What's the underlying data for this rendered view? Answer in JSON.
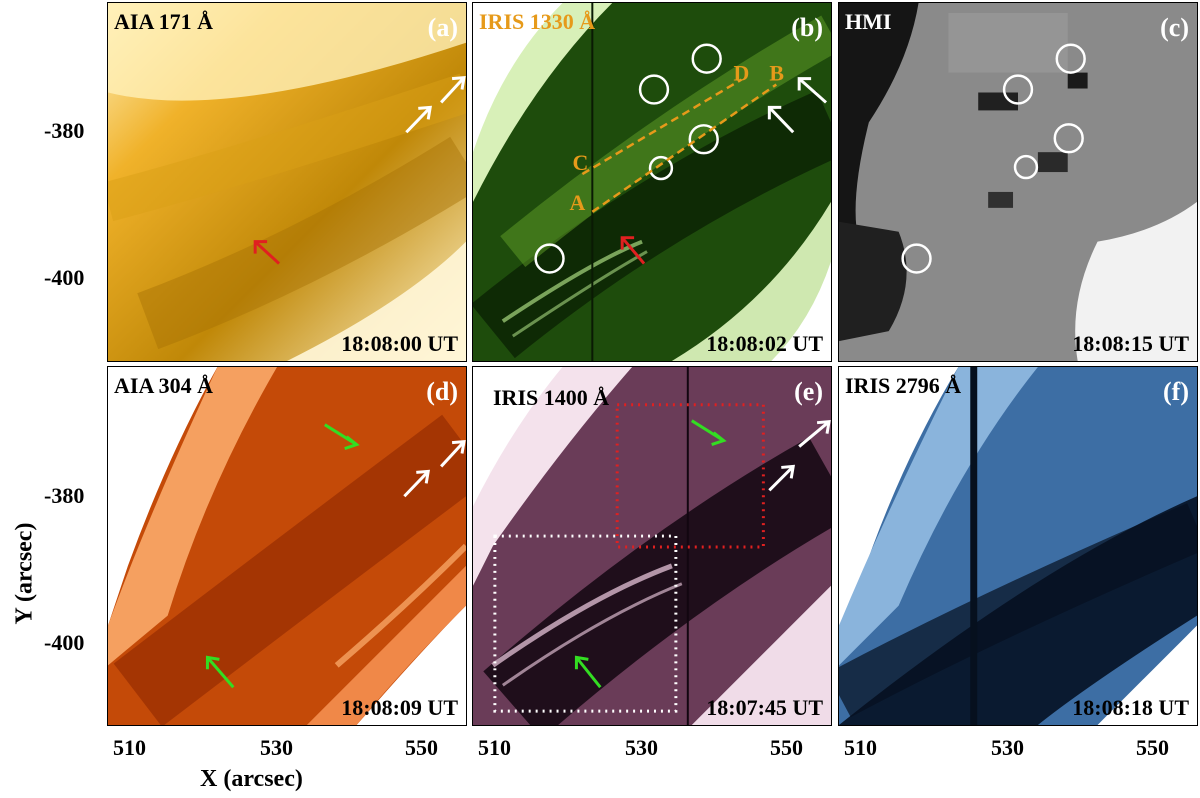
{
  "panels": [
    {
      "id": "a",
      "title": "AIA 171 Å",
      "letter": "(a)",
      "time": "18:08:00 UT",
      "title_color": "#000000",
      "letter_color": "#ffffff",
      "time_color": "#000000",
      "palette": [
        "#fff6d0",
        "#e7a610",
        "#b27a07"
      ]
    },
    {
      "id": "b",
      "title": "IRIS 1330 Å",
      "letter": "(b)",
      "time": "18:08:02 UT",
      "title_color": "#e69a1a",
      "letter_color": "#ffffff",
      "time_color": "#000000",
      "palette": [
        "#ffffff",
        "#4d8a1a",
        "#0b2a05"
      ]
    },
    {
      "id": "c",
      "title": "HMI",
      "letter": "(c)",
      "time": "18:08:15 UT",
      "title_color": "#ffffff",
      "letter_color": "#ffffff",
      "time_color": "#000000",
      "palette": [
        "#ffffff",
        "#8a8a8a",
        "#111111"
      ]
    },
    {
      "id": "d",
      "title": "AIA 304 Å",
      "letter": "(d)",
      "time": "18:08:09 UT",
      "title_color": "#000000",
      "letter_color": "#ffffff",
      "time_color": "#000000",
      "palette": [
        "#ffffff",
        "#d8540a",
        "#8a2200"
      ]
    },
    {
      "id": "e",
      "title": "IRIS 1400 Å",
      "letter": "(e)",
      "time": "18:07:45 UT",
      "title_color": "#000000",
      "letter_color": "#ffffff",
      "time_color": "#000000",
      "palette": [
        "#ffffff",
        "#8a5a78",
        "#150810"
      ]
    },
    {
      "id": "f",
      "title": "IRIS 2796 Å",
      "letter": "(f)",
      "time": "18:08:18 UT",
      "title_color": "#000000",
      "letter_color": "#ffffff",
      "time_color": "#000000",
      "palette": [
        "#ffffff",
        "#4b82b8",
        "#071428"
      ]
    }
  ],
  "slit_labels": {
    "a": "A",
    "b": "B",
    "c": "C",
    "d": "D"
  },
  "slit_color": "#e69a1a",
  "axes": {
    "x_title": "X (arcsec)",
    "y_title": "Y (arcsec)",
    "x_ticks": [
      "510",
      "530",
      "550"
    ],
    "y_ticks": [
      "-380",
      "-400"
    ]
  },
  "arrow_colors": {
    "white": "#ffffff",
    "red": "#e02020",
    "green": "#33dd22"
  },
  "box_colors": {
    "red": "#e02020",
    "white": "#ffffff"
  }
}
